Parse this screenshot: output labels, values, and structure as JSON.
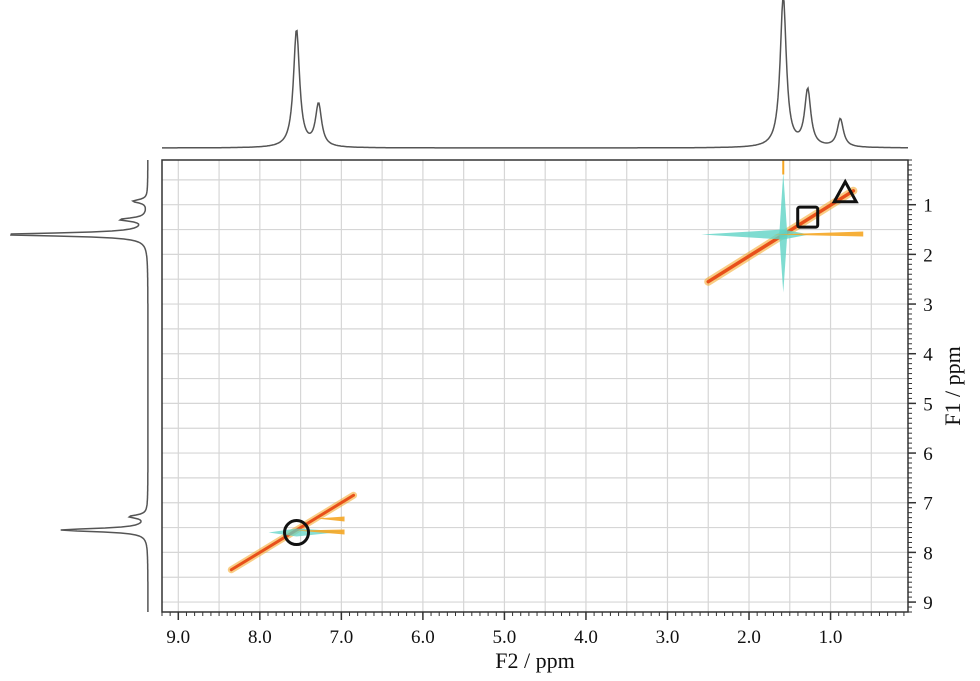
{
  "chart_data": {
    "type": "2d-nmr-contour",
    "xlabel": "F2 / ppm",
    "ylabel": "F1 / ppm",
    "x_ticks": [
      "9.0",
      "8.0",
      "7.0",
      "6.0",
      "5.0",
      "4.0",
      "3.0",
      "2.0",
      "1.0"
    ],
    "x_tick_values": [
      9.0,
      8.0,
      7.0,
      6.0,
      5.0,
      4.0,
      3.0,
      2.0,
      1.0
    ],
    "y_ticks": [
      "1",
      "2",
      "3",
      "4",
      "5",
      "6",
      "7",
      "8",
      "9"
    ],
    "y_tick_values": [
      1,
      2,
      3,
      4,
      5,
      6,
      7,
      8,
      9
    ],
    "xlim": [
      9.2,
      0.05
    ],
    "ylim": [
      0.1,
      9.2
    ],
    "x_reversed": true,
    "y_direction": "increasing-downward",
    "grid": true,
    "grid_spacing_ppm": 0.5,
    "projections": {
      "top_1d_peaks": [
        {
          "ppm": 7.55,
          "intensity": 1.0
        },
        {
          "ppm": 7.28,
          "intensity": 0.36
        },
        {
          "ppm": 1.58,
          "intensity": 1.28
        },
        {
          "ppm": 1.28,
          "intensity": 0.48
        },
        {
          "ppm": 0.88,
          "intensity": 0.24
        }
      ],
      "left_1d_peaks": [
        {
          "ppm": 0.93,
          "intensity": 0.1
        },
        {
          "ppm": 1.3,
          "intensity": 0.18
        },
        {
          "ppm": 1.6,
          "intensity": 1.0
        },
        {
          "ppm": 7.28,
          "intensity": 0.12
        },
        {
          "ppm": 7.55,
          "intensity": 0.6
        }
      ]
    },
    "cross_peaks": [
      {
        "x": 7.55,
        "y": 7.6,
        "marker": "circle"
      },
      {
        "x": 1.28,
        "y": 1.25,
        "marker": "square"
      },
      {
        "x": 0.82,
        "y": 0.8,
        "marker": "triangle"
      },
      {
        "x": 1.58,
        "y": 1.6,
        "marker": "none"
      }
    ],
    "colors": {
      "diagonal": "#e8501a",
      "diagonal_halo": "#f5a623",
      "cyan_contour": "#5fd3c6",
      "spectrum_line": "#555555",
      "grid": "#d6d6d6",
      "axis": "#333333"
    }
  }
}
